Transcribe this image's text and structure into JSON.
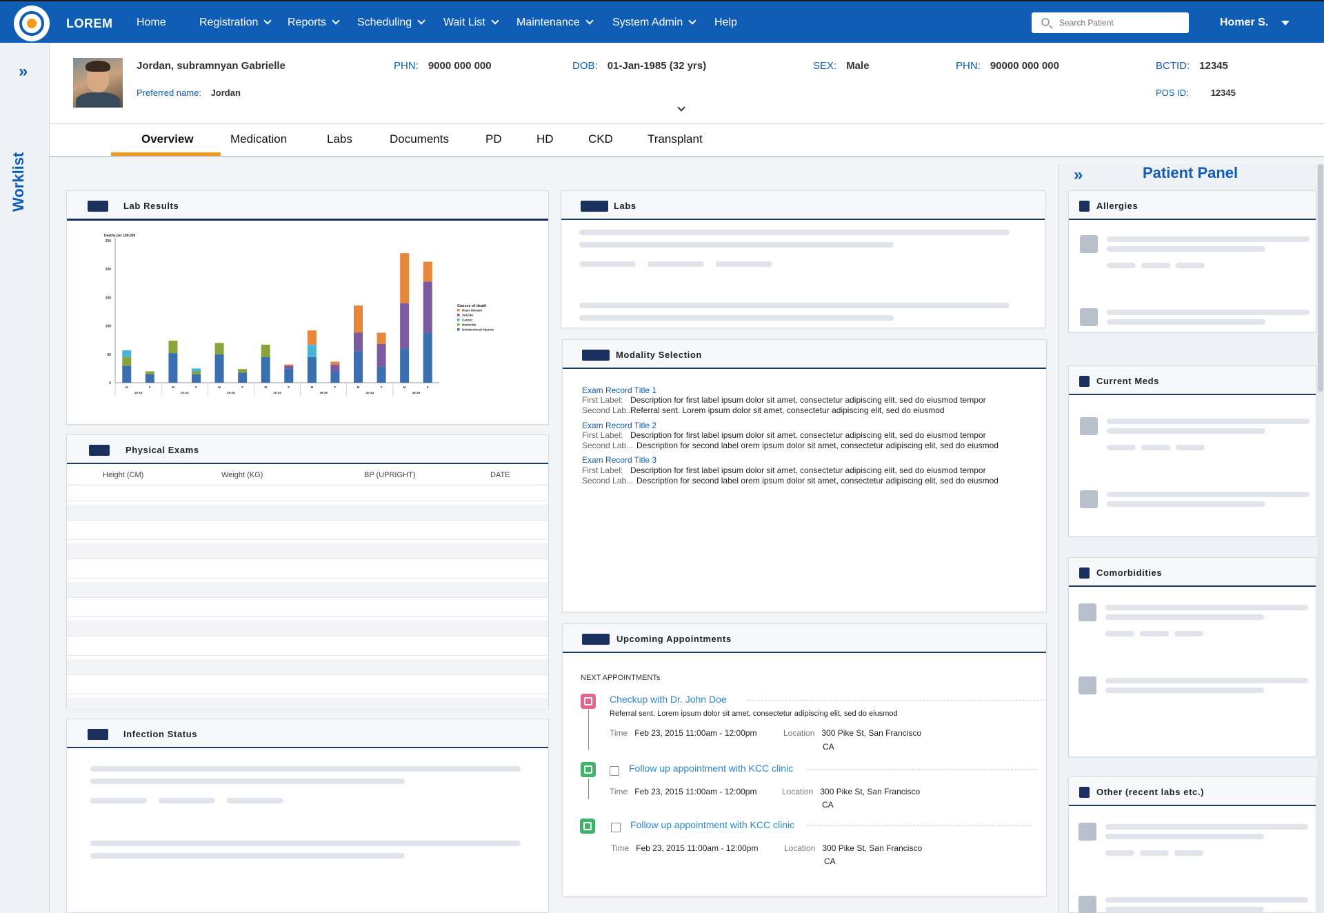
{
  "app": {
    "brand": "LOREM"
  },
  "nav": {
    "items": [
      {
        "label": "Home",
        "dropdown": false
      },
      {
        "label": "Registration",
        "dropdown": true
      },
      {
        "label": "Reports",
        "dropdown": true
      },
      {
        "label": "Scheduling",
        "dropdown": true
      },
      {
        "label": "Wait List",
        "dropdown": true
      },
      {
        "label": "Maintenance",
        "dropdown": true
      },
      {
        "label": "System Admin",
        "dropdown": true
      },
      {
        "label": "Help",
        "dropdown": false
      }
    ],
    "search_placeholder": "Search Patient",
    "user": "Homer S."
  },
  "worklist": {
    "label": "Worklist"
  },
  "patient": {
    "name": "Jordan, subramnyan Gabrielle",
    "preferred_label": "Preferred name:",
    "preferred_value": "Jordan",
    "phn1_label": "PHN:",
    "phn1_value": "9000 000 000",
    "dob_label": "DOB:",
    "dob_value": "01-Jan-1985 (32 yrs)",
    "sex_label": "SEX:",
    "sex_value": "Male",
    "phn2_label": "PHN:",
    "phn2_value": "90000 000 000",
    "bctid_label": "BCTID:",
    "bctid_value": "12345",
    "posid_label": "POS ID:",
    "posid_value": "12345"
  },
  "tabs": [
    "Overview",
    "Medication",
    "Labs",
    "Documents",
    "PD",
    "HD",
    "CKD",
    "Transplant"
  ],
  "active_tab": "Overview",
  "panels": {
    "lab_results": "Lab Results",
    "physical_exams": "Physical Exams",
    "infection_status": "Infection Status",
    "labs": "Labs",
    "modality_selection": "Modality Selection",
    "upcoming_appointments": "Upcoming Appointments"
  },
  "physical_exams": {
    "columns": [
      "Height (CM)",
      "Weight (KG)",
      "BP (UPRIGHT)",
      "DATE"
    ]
  },
  "modality": {
    "records": [
      {
        "title": "Exam Record Title 1",
        "lines": [
          {
            "label": "First Label:",
            "desc": "Description for first label  ipsum dolor sit amet, consectetur adipiscing elit, sed do eiusmod tempor"
          },
          {
            "label": "Second Lab...",
            "desc": "Referral sent. Lorem ipsum dolor sit amet, consectetur adipiscing elit, sed do eiusmod"
          }
        ]
      },
      {
        "title": "Exam Record Title 2",
        "lines": [
          {
            "label": "First Label:",
            "desc": "Description for first label  ipsum dolor sit amet, consectetur adipiscing elit, sed do eiusmod tempor"
          },
          {
            "label": "Second Lab...",
            "desc": "Description for second label orem ipsum dolor sit amet, consectetur adipiscing elit, sed do eiusmod"
          }
        ]
      },
      {
        "title": "Exam Record Title 3",
        "lines": [
          {
            "label": "First Label:",
            "desc": "Description for first label  ipsum dolor sit amet, consectetur adipiscing elit, sed do eiusmod tempor"
          },
          {
            "label": "Second Lab...",
            "desc": "Description for second label orem ipsum dolor sit amet, consectetur adipiscing elit, sed do eiusmod"
          }
        ]
      }
    ]
  },
  "appointments": {
    "kicker": "NEXT APPOINTMENTs",
    "items": [
      {
        "title": "Checkup with Dr. John Doe",
        "note": "Referral sent. Lorem ipsum dolor sit amet, consectetur adipiscing elit, sed do eiusmod",
        "time_label": "Time",
        "time_value": "Feb 23, 2015  11:00am - 12:00pm",
        "location_label": "Location",
        "location_value": "300 Pike St, San Francisco",
        "location_value2": "CA",
        "icon": "calendar-icon",
        "color": "#e3648f",
        "has_checkbox": false
      },
      {
        "title": "Follow up appointment with KCC clinic",
        "time_label": "Time",
        "time_value": "Feb 23, 2015  11:00am - 12:00pm",
        "location_label": "Location",
        "location_value": "300 Pike St, San Francisco",
        "location_value2": "CA",
        "icon": "checklist-icon",
        "color": "#3fb36a",
        "has_checkbox": true
      },
      {
        "title": "Follow up appointment with KCC clinic",
        "time_label": "Time",
        "time_value": "Feb 23, 2015  11:00am - 12:00pm",
        "location_label": "Location",
        "location_value": "300 Pike St, San Francisco",
        "location_value2": "CA",
        "icon": "checklist-icon",
        "color": "#3fb36a",
        "has_checkbox": true
      }
    ]
  },
  "patient_panel": {
    "title": "Patient Panel",
    "sections": [
      "Allergies",
      "Current Meds",
      "Comorbidities",
      "Other (recent labs etc.)"
    ]
  },
  "chart_data": {
    "type": "bar",
    "stacked": true,
    "title": "",
    "ylabel": "Deaths per 100,000",
    "xlabel": "",
    "ylim": [
      0,
      250
    ],
    "yticks": [
      0,
      50,
      100,
      150,
      200,
      250
    ],
    "sex_labels": [
      "M",
      "F",
      "M",
      "F",
      "M",
      "F",
      "M",
      "F",
      "M",
      "F",
      "M",
      "F",
      "M",
      "F"
    ],
    "age_groups": [
      "15-19",
      "20-24",
      "25-29",
      "30-34",
      "35-39",
      "40-44",
      "45-49"
    ],
    "legend_title": "Causes of death",
    "legend_position": "right",
    "series": [
      {
        "name": "Heart disease",
        "color": "#e8863a",
        "values": [
          0,
          0,
          0,
          0,
          0,
          0,
          0,
          2,
          25,
          5,
          48,
          20,
          88,
          35
        ]
      },
      {
        "name": "Suicide",
        "color": "#7a5aa0",
        "values": [
          0,
          0,
          0,
          0,
          0,
          0,
          0,
          5,
          0,
          12,
          33,
          40,
          80,
          90
        ]
      },
      {
        "name": "Cancer",
        "color": "#4ab3d8",
        "values": [
          12,
          0,
          0,
          5,
          0,
          0,
          0,
          0,
          22,
          0,
          0,
          0,
          0,
          0
        ]
      },
      {
        "name": "Homicide",
        "color": "#8ba43a",
        "values": [
          15,
          5,
          22,
          5,
          20,
          6,
          22,
          0,
          0,
          0,
          0,
          0,
          0,
          0
        ]
      },
      {
        "name": "Unintentional injuries",
        "color": "#3a6fb0",
        "values": [
          30,
          15,
          52,
          15,
          50,
          18,
          45,
          25,
          45,
          20,
          55,
          28,
          60,
          88
        ]
      }
    ]
  }
}
